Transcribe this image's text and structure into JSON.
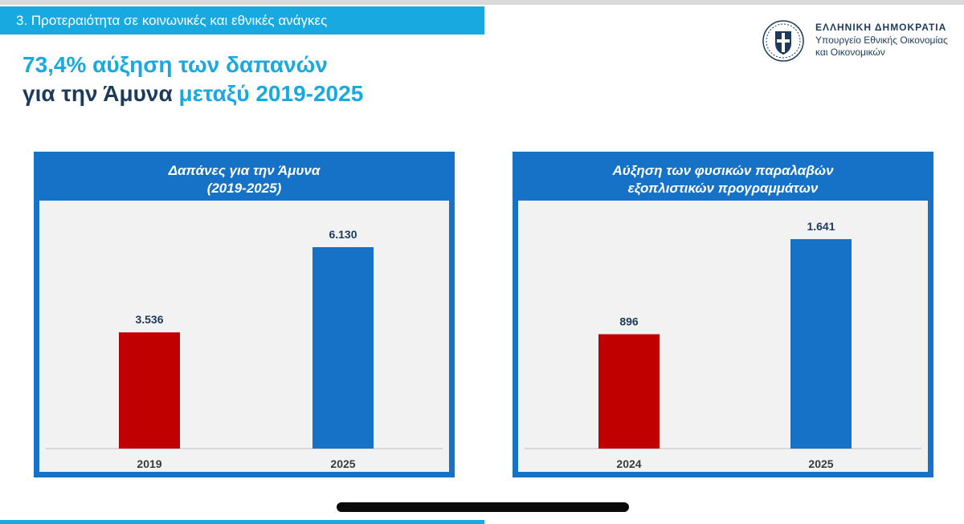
{
  "section": {
    "label": "3. Προτεραιότητα σε κοινωνικές και εθνικές ανάγκες"
  },
  "headline": {
    "line1": "73,4% αύξηση των δαπανών",
    "line2_dark": "για την Άμυνα ",
    "line2_blue": "μεταξύ 2019-2025"
  },
  "brand": {
    "title": "ΕΛΛΗΝΙΚΗ ΔΗΜΟΚΡΑΤΙΑ",
    "sub1": "Υπουργείο Εθνικής Οικονομίας",
    "sub2": "και Οικονομικών"
  },
  "colors": {
    "accent": "#18a9e1",
    "panel": "#1672c6",
    "red": "#c00000",
    "blue": "#1672c6",
    "dark": "#1c3a5b"
  },
  "chart_data": [
    {
      "type": "bar",
      "title": "Δαπάνες για την Άμυνα",
      "subtitle": "(2019-2025)",
      "categories": [
        "2019",
        "2025"
      ],
      "values": [
        3536,
        6130
      ],
      "value_labels": [
        "3.536",
        "6.130"
      ],
      "bar_colors": [
        "#c00000",
        "#1672c6"
      ],
      "ylim": [
        0,
        6130
      ]
    },
    {
      "type": "bar",
      "title": "Αύξηση των φυσικών παραλαβών",
      "subtitle": "εξοπλιστικών προγραμμάτων",
      "categories": [
        "2024",
        "2025"
      ],
      "values": [
        896,
        1641
      ],
      "value_labels": [
        "896",
        "1.641"
      ],
      "bar_colors": [
        "#c00000",
        "#1672c6"
      ],
      "ylim": [
        0,
        1641
      ]
    }
  ]
}
